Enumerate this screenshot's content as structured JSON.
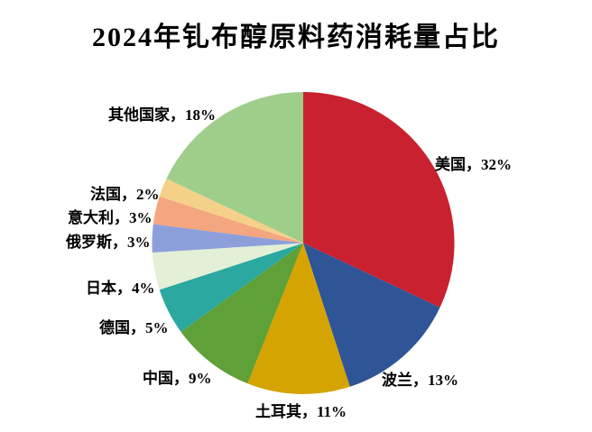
{
  "page": {
    "background_color": "#FFFFFF",
    "text_color": "#000000"
  },
  "chart_data": {
    "type": "pie",
    "title": "2024年钆布醇原料药消耗量占比",
    "categories": [
      "美国",
      "波兰",
      "土耳其",
      "中国",
      "德国",
      "日本",
      "俄罗斯",
      "意大利",
      "法国",
      "其他国家"
    ],
    "values": [
      32,
      13,
      11,
      9,
      5,
      4,
      3,
      3,
      2,
      18
    ],
    "unit": "%",
    "labels": [
      "美国，32%",
      "波兰，13%",
      "土耳其，11%",
      "中国，9%",
      "德国，5%",
      "日本，4%",
      "俄罗斯，3%",
      "意大利，3%",
      "法国，2%",
      "其他国家，18%"
    ],
    "colors": [
      "#C92130",
      "#2F5597",
      "#D5A400",
      "#60A038",
      "#2BA8A0",
      "#E3EFD6",
      "#8C9FDB",
      "#F3A67F",
      "#F5D089",
      "#9FCE8B"
    ],
    "start_angle_deg": 0,
    "direction": "clockwise",
    "legend_position": "none",
    "grid": false,
    "label_style": "category-and-percent-outside"
  }
}
